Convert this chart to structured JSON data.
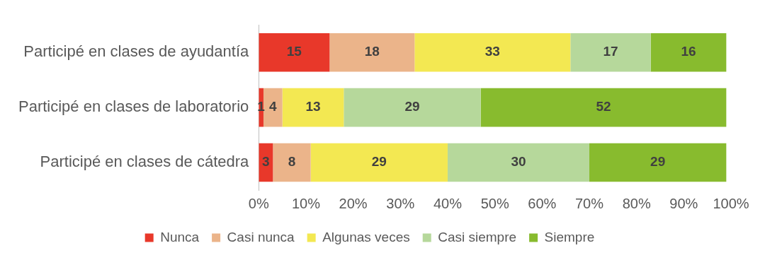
{
  "chart_data": {
    "type": "bar",
    "orientation": "horizontal",
    "stacked": true,
    "categories": [
      "Participé en clases de ayudantía",
      "Participé en clases de laboratorio",
      "Participé en clases de cátedra"
    ],
    "series": [
      {
        "name": "Nunca",
        "color": "#e8382a",
        "values": [
          15,
          1,
          3
        ]
      },
      {
        "name": "Casi nunca",
        "color": "#ebb48a",
        "values": [
          18,
          4,
          8
        ]
      },
      {
        "name": "Algunas veces",
        "color": "#f3e852",
        "values": [
          33,
          13,
          29
        ]
      },
      {
        "name": "Casi siempre",
        "color": "#b6d89b",
        "values": [
          17,
          29,
          30
        ]
      },
      {
        "name": "Siempre",
        "color": "#88bb2e",
        "values": [
          16,
          52,
          29
        ]
      }
    ],
    "xlim": [
      0,
      100
    ],
    "xticks": [
      {
        "value": 0,
        "label": "0%"
      },
      {
        "value": 10,
        "label": "10%"
      },
      {
        "value": 20,
        "label": "20%"
      },
      {
        "value": 30,
        "label": "30%"
      },
      {
        "value": 40,
        "label": "40%"
      },
      {
        "value": 50,
        "label": "50%"
      },
      {
        "value": 60,
        "label": "60%"
      },
      {
        "value": 70,
        "label": "70%"
      },
      {
        "value": 80,
        "label": "80%"
      },
      {
        "value": 90,
        "label": "90%"
      },
      {
        "value": 100,
        "label": "100%"
      }
    ],
    "grid": false,
    "legend": "bottom",
    "data_labels": true
  }
}
